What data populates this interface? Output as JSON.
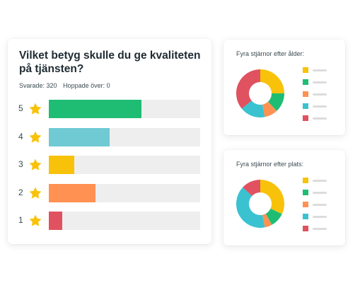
{
  "question": {
    "title": "Vilket betyg skulle du ge kvaliteten på tjänsten?",
    "answered": "Svarade: 320",
    "skipped": "Hoppade över: 0"
  },
  "chart_data": [
    {
      "type": "bar",
      "orientation": "horizontal",
      "title": "Vilket betyg skulle du ge kvaliteten på tjänsten?",
      "categories": [
        "5",
        "4",
        "3",
        "2",
        "1"
      ],
      "values": [
        61,
        40,
        17,
        31,
        9
      ],
      "xlim": [
        0,
        100
      ],
      "colors": [
        "#1ebd73",
        "#6fcad3",
        "#f8c20a",
        "#ff9152",
        "#e05260"
      ],
      "track_color": "#eeeeee",
      "star_color": "#f8c20a"
    },
    {
      "type": "pie",
      "title": "Fyra stjärnor efter ålder:",
      "values": [
        25,
        13,
        9,
        17,
        36
      ],
      "colors": [
        "#f8c20a",
        "#1ebd73",
        "#ff9152",
        "#3ac2d1",
        "#e05260"
      ],
      "legend": "right"
    },
    {
      "type": "pie",
      "title": "Fyra stjärnor efter plats:",
      "values": [
        32,
        10,
        5,
        40,
        13
      ],
      "colors": [
        "#f8c20a",
        "#1ebd73",
        "#ff9152",
        "#3ac2d1",
        "#e05260"
      ],
      "legend": "right"
    }
  ]
}
